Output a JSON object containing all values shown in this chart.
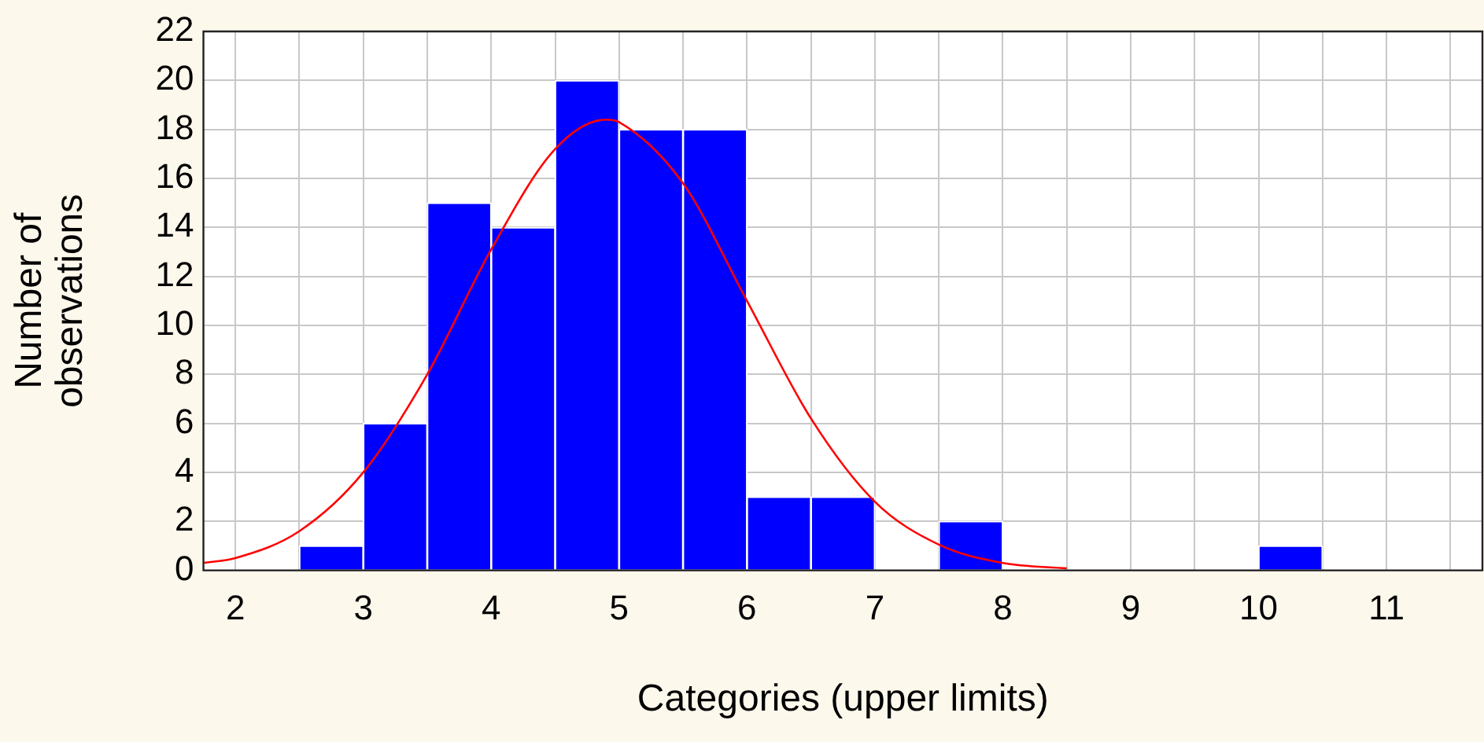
{
  "chart_data": {
    "type": "histogram",
    "xlabel": "Categories (upper limits)",
    "ylabel": "Number of observations",
    "bins": [
      2.5,
      3,
      3.5,
      4,
      4.5,
      5,
      5.5,
      6,
      6.5,
      7,
      7.5,
      8,
      8.5,
      9,
      9.5,
      10,
      10.5
    ],
    "values": [
      1,
      6,
      15,
      14,
      20,
      18,
      18,
      3,
      3,
      0,
      2,
      0,
      0,
      0,
      0,
      1
    ],
    "color": "#0000ff",
    "series": [
      {
        "type": "line",
        "color": "#ff0000",
        "marker": "none",
        "x": [
          1.75,
          2,
          2.5,
          3,
          3.5,
          4,
          4.5,
          4.9,
          5,
          5.5,
          6,
          6.5,
          7,
          7.5,
          8,
          8.5
        ],
        "values": [
          0.3,
          0.5,
          1.6,
          4,
          8,
          13.1,
          17.2,
          18.4,
          18.3,
          15.8,
          11,
          6.2,
          2.8,
          1.05,
          0.3,
          0.08
        ]
      }
    ],
    "xlim": [
      1.75,
      11.75
    ],
    "xticks": [
      2,
      {
        "value": 2.5,
        "label": null
      },
      3,
      {
        "value": 3.5,
        "label": null
      },
      4,
      {
        "value": 4.5,
        "label": null
      },
      5,
      {
        "value": 5.5,
        "label": null
      },
      6,
      {
        "value": 6.5,
        "label": null
      },
      7,
      {
        "value": 7.5,
        "label": null
      },
      8,
      {
        "value": 8.5,
        "label": null
      },
      9,
      {
        "value": 9.5,
        "label": null
      },
      10,
      {
        "value": 10.5,
        "label": null
      },
      11,
      {
        "value": 11.5,
        "label": null
      }
    ],
    "ylim": [
      0,
      22
    ],
    "yticks": [
      0,
      2,
      4,
      6,
      8,
      10,
      12,
      14,
      16,
      18,
      20,
      22
    ],
    "grid": true,
    "legend": false
  }
}
